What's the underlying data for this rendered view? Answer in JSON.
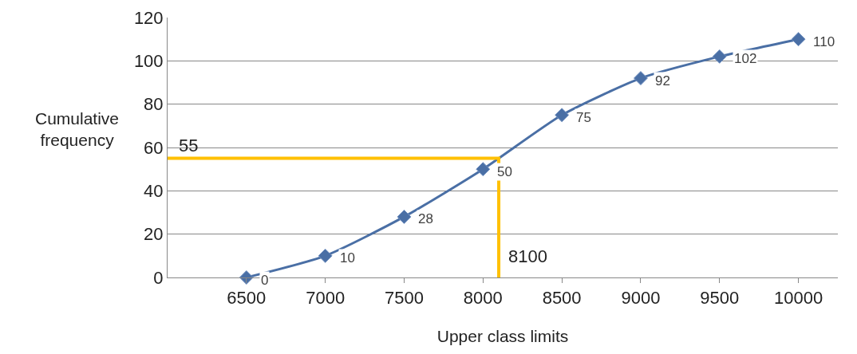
{
  "chart_data": {
    "type": "line",
    "xlabel": "Upper class limits",
    "ylabel": "Cumulative frequency",
    "xlim": [
      6000,
      10250
    ],
    "xticks": [
      6500,
      7000,
      7500,
      8000,
      8500,
      9000,
      9500,
      10000
    ],
    "ylim": [
      0,
      120
    ],
    "yticks": [
      0,
      20,
      40,
      60,
      80,
      100,
      120
    ],
    "grid": "y",
    "marker": "diamond",
    "series": [
      {
        "color": "#4a6fa5",
        "x": [
          6500,
          7000,
          7500,
          8000,
          8500,
          9000,
          9500,
          10000
        ],
        "values": [
          0,
          10,
          28,
          50,
          75,
          92,
          102,
          110
        ],
        "value_labels": [
          "0",
          "10",
          "28",
          "50",
          "75",
          "92",
          "102",
          "110"
        ]
      },
      {
        "color": "#ffc000",
        "marker": "none",
        "x": [
          6000,
          8100,
          8100
        ],
        "values": [
          55,
          55,
          0
        ]
      }
    ],
    "annotations": [
      {
        "text": "55",
        "x": 6000,
        "y": 55
      },
      {
        "text": "8100",
        "x": 8100,
        "y": 0
      }
    ]
  }
}
